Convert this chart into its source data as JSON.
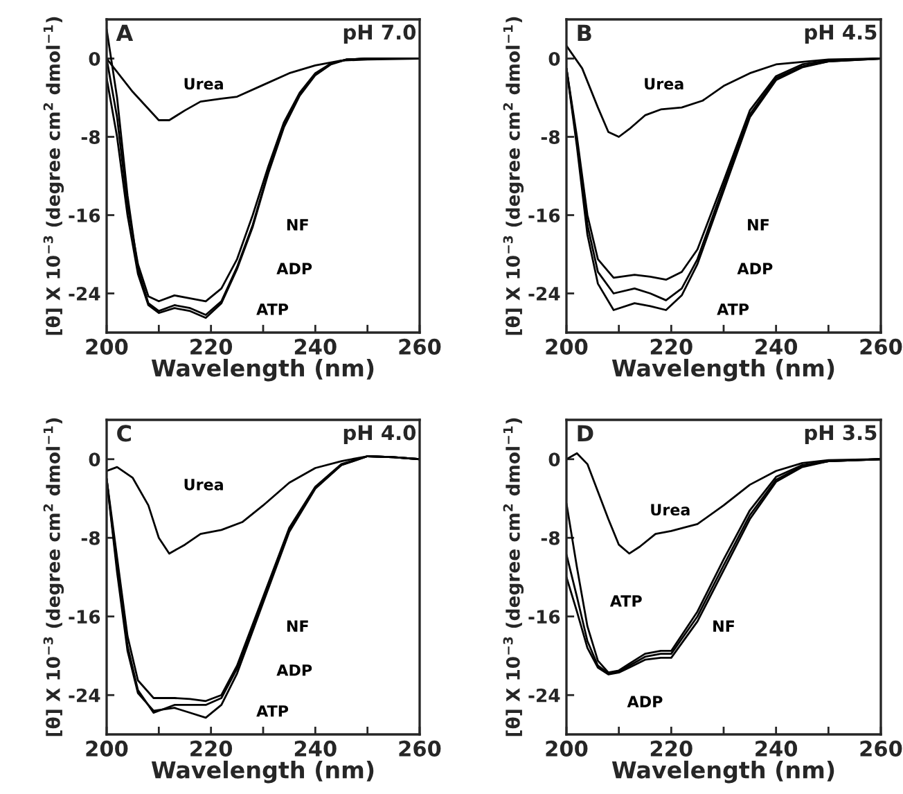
{
  "chart_data": [
    {
      "type": "line",
      "title": "pH 7.0",
      "xlabel": "Wavelength (nm)",
      "ylabel": "[θ] X 10$^{−3}$ (degree cm$^{2}$ dmol$^{−1}$)",
      "xlim": [
        200,
        260
      ],
      "ylim": [
        -28,
        4
      ],
      "xticks": [
        200,
        {
          "value": 210,
          "label": null
        },
        220,
        {
          "value": 230,
          "label": null
        },
        240,
        {
          "value": 250,
          "label": null
        },
        260
      ],
      "yticks": [
        0,
        -8,
        -16,
        -24
      ],
      "grid": false,
      "annotations": [
        "A"
      ],
      "series": [
        {
          "name": "Urea",
          "color": "#000000",
          "x": [
            200,
            205,
            210,
            212,
            215,
            218,
            222,
            225,
            230,
            235,
            240,
            245,
            250,
            260
          ],
          "values": [
            0,
            -3.4,
            -6.3,
            -6.3,
            -5.3,
            -4.4,
            -4.1,
            -3.9,
            -2.7,
            -1.5,
            -0.7,
            -0.2,
            -0.1,
            0
          ]
        },
        {
          "name": "NF",
          "color": "#000000",
          "x": [
            200,
            202,
            204,
            206,
            208,
            210,
            213,
            216,
            219,
            222,
            225,
            228,
            231,
            234,
            237,
            240,
            243,
            246,
            250,
            260
          ],
          "values": [
            0,
            -6,
            -15,
            -21,
            -24.3,
            -24.8,
            -24.2,
            -24.5,
            -24.8,
            -23.5,
            -20.5,
            -16,
            -11,
            -6.5,
            -3.5,
            -1.5,
            -0.5,
            -0.1,
            0,
            0
          ]
        },
        {
          "name": "ADP",
          "color": "#000000",
          "x": [
            200,
            202,
            204,
            206,
            208,
            210,
            213,
            216,
            219,
            222,
            225,
            228,
            231,
            234,
            237,
            240,
            243,
            246,
            250,
            260
          ],
          "values": [
            3,
            -4,
            -14,
            -21.5,
            -25,
            -25.8,
            -25.2,
            -25.5,
            -26.2,
            -24.8,
            -21.3,
            -17,
            -11.5,
            -6.8,
            -3.7,
            -1.6,
            -0.5,
            -0.1,
            0,
            0
          ]
        },
        {
          "name": "ATP",
          "color": "#000000",
          "x": [
            200,
            202,
            204,
            206,
            208,
            210,
            213,
            216,
            219,
            222,
            225,
            228,
            231,
            234,
            237,
            240,
            243,
            246,
            250,
            260
          ],
          "values": [
            -2,
            -8,
            -16,
            -22,
            -25.2,
            -26,
            -25.5,
            -25.8,
            -26.5,
            -25,
            -21.5,
            -17.2,
            -11.7,
            -7,
            -3.8,
            -1.7,
            -0.6,
            -0.1,
            0,
            0
          ]
        }
      ]
    },
    {
      "type": "line",
      "title": "pH 4.5",
      "xlabel": "Wavelength (nm)",
      "ylabel": "[θ] X 10$^{−3}$ (degree cm$^{2}$ dmol$^{−1}$)",
      "xlim": [
        200,
        260
      ],
      "ylim": [
        -28,
        4
      ],
      "xticks": [
        200,
        {
          "value": 210,
          "label": null
        },
        220,
        {
          "value": 230,
          "label": null
        },
        240,
        {
          "value": 250,
          "label": null
        },
        260
      ],
      "yticks": [
        0,
        -8,
        -16,
        -24
      ],
      "grid": false,
      "annotations": [
        "B"
      ],
      "series": [
        {
          "name": "Urea",
          "color": "#000000",
          "x": [
            200,
            203,
            206,
            208,
            210,
            212,
            215,
            218,
            222,
            226,
            230,
            235,
            240,
            250,
            260
          ],
          "values": [
            1.3,
            -1,
            -5,
            -7.5,
            -8,
            -7.2,
            -5.8,
            -5.2,
            -5,
            -4.3,
            -2.8,
            -1.5,
            -0.6,
            -0.1,
            0
          ]
        },
        {
          "name": "NF",
          "color": "#000000",
          "x": [
            200,
            202,
            204,
            206,
            209,
            213,
            216,
            219,
            222,
            225,
            230,
            235,
            240,
            245,
            250,
            260
          ],
          "values": [
            -1,
            -8,
            -16,
            -20.5,
            -22.4,
            -22.1,
            -22.3,
            -22.6,
            -21.8,
            -19.5,
            -12.5,
            -5.3,
            -1.8,
            -0.6,
            -0.2,
            0
          ]
        },
        {
          "name": "ADP",
          "color": "#000000",
          "x": [
            200,
            202,
            204,
            206,
            209,
            213,
            216,
            219,
            222,
            225,
            230,
            235,
            240,
            245,
            250,
            260
          ],
          "values": [
            -1,
            -8.5,
            -17,
            -21.8,
            -24,
            -23.5,
            -24,
            -24.7,
            -23.5,
            -20.5,
            -13,
            -5.7,
            -2,
            -0.8,
            -0.3,
            0
          ]
        },
        {
          "name": "ATP",
          "color": "#000000",
          "x": [
            200,
            202,
            204,
            206,
            209,
            213,
            216,
            219,
            222,
            225,
            230,
            235,
            240,
            245,
            250,
            260
          ],
          "values": [
            -1,
            -9,
            -18,
            -23,
            -25.7,
            -25,
            -25.3,
            -25.7,
            -24.2,
            -21,
            -13.5,
            -6,
            -2.2,
            -0.9,
            -0.3,
            0
          ]
        }
      ]
    },
    {
      "type": "line",
      "title": "pH 4.0",
      "xlabel": "Wavelength (nm)",
      "ylabel": "[θ] X 10$^{−3}$ (degree cm$^{2}$ dmol$^{−1}$)",
      "xlim": [
        200,
        260
      ],
      "ylim": [
        -28,
        4
      ],
      "xticks": [
        200,
        {
          "value": 210,
          "label": null
        },
        220,
        {
          "value": 230,
          "label": null
        },
        240,
        {
          "value": 250,
          "label": null
        },
        260
      ],
      "yticks": [
        0,
        -8,
        -16,
        -24
      ],
      "grid": false,
      "annotations": [
        "C"
      ],
      "series": [
        {
          "name": "Urea",
          "color": "#000000",
          "x": [
            200,
            202,
            205,
            208,
            210,
            212,
            215,
            218,
            222,
            226,
            230,
            235,
            240,
            245,
            250,
            255,
            260
          ],
          "values": [
            -1.2,
            -0.8,
            -1.9,
            -4.7,
            -8,
            -9.6,
            -8.7,
            -7.6,
            -7.2,
            -6.4,
            -4.7,
            -2.4,
            -0.9,
            -0.2,
            0.3,
            0.2,
            0
          ]
        },
        {
          "name": "NF",
          "color": "#000000",
          "x": [
            200,
            202,
            204,
            206,
            209,
            213,
            216,
            219,
            222,
            225,
            230,
            235,
            240,
            245,
            250,
            255,
            260
          ],
          "values": [
            -2,
            -10,
            -18,
            -22.5,
            -24.3,
            -24.3,
            -24.4,
            -24.6,
            -24,
            -21,
            -14,
            -7,
            -2.8,
            -0.5,
            0.3,
            0.2,
            0
          ]
        },
        {
          "name": "ADP",
          "color": "#000000",
          "x": [
            200,
            202,
            204,
            206,
            209,
            213,
            216,
            219,
            222,
            225,
            230,
            235,
            240,
            245,
            250,
            255,
            260
          ],
          "values": [
            -2,
            -11,
            -19,
            -23.5,
            -25.8,
            -25,
            -25,
            -25,
            -24.3,
            -21.3,
            -14.3,
            -7.2,
            -2.9,
            -0.6,
            0.3,
            0.2,
            0
          ]
        },
        {
          "name": "ATP",
          "color": "#000000",
          "x": [
            200,
            202,
            204,
            206,
            209,
            213,
            216,
            219,
            222,
            225,
            230,
            235,
            240,
            245,
            250,
            255,
            260
          ],
          "values": [
            -2,
            -11.5,
            -19.5,
            -23.8,
            -25.6,
            -25.3,
            -25.8,
            -26.3,
            -25,
            -21.8,
            -14.6,
            -7.4,
            -3,
            -0.6,
            0.3,
            0.2,
            0
          ]
        }
      ]
    },
    {
      "type": "line",
      "title": "pH 3.5",
      "xlabel": "Wavelength (nm)",
      "ylabel": "[θ] X 10$^{−3}$ (degree cm$^{2}$ dmol$^{−1}$)",
      "xlim": [
        200,
        260
      ],
      "ylim": [
        -28,
        4
      ],
      "xticks": [
        200,
        {
          "value": 210,
          "label": null
        },
        220,
        {
          "value": 230,
          "label": null
        },
        240,
        {
          "value": 250,
          "label": null
        },
        260
      ],
      "yticks": [
        0,
        -8,
        -16,
        -24
      ],
      "grid": false,
      "annotations": [
        "D"
      ],
      "series": [
        {
          "name": "Urea",
          "color": "#000000",
          "x": [
            200,
            202,
            204,
            206,
            208,
            210,
            212,
            214,
            217,
            220,
            225,
            230,
            235,
            240,
            245,
            250,
            260
          ],
          "values": [
            0,
            0.6,
            -0.5,
            -3.3,
            -6.1,
            -8.7,
            -9.6,
            -8.9,
            -7.6,
            -7.3,
            -6.6,
            -4.7,
            -2.6,
            -1.2,
            -0.4,
            -0.1,
            0
          ]
        },
        {
          "name": "ATP",
          "color": "#000000",
          "x": [
            200,
            202,
            204,
            206,
            208,
            210,
            212,
            215,
            218,
            220,
            225,
            230,
            235,
            240,
            245,
            250,
            260
          ],
          "values": [
            -4.5,
            -11,
            -17,
            -20.5,
            -21.7,
            -21.5,
            -20.8,
            -19.8,
            -19.5,
            -19.5,
            -15.5,
            -10.2,
            -5.2,
            -1.8,
            -0.6,
            -0.2,
            0
          ]
        },
        {
          "name": "ADP",
          "color": "#000000",
          "x": [
            200,
            202,
            204,
            206,
            208,
            210,
            212,
            215,
            218,
            220,
            225,
            230,
            235,
            240,
            245,
            250,
            260
          ],
          "values": [
            -9.7,
            -14,
            -18.5,
            -21,
            -21.8,
            -21.6,
            -21,
            -20.1,
            -19.8,
            -19.8,
            -16,
            -10.8,
            -5.7,
            -2.1,
            -0.7,
            -0.2,
            0
          ]
        },
        {
          "name": "NF",
          "color": "#000000",
          "x": [
            200,
            202,
            204,
            206,
            208,
            210,
            212,
            215,
            218,
            220,
            225,
            230,
            235,
            240,
            245,
            250,
            260
          ],
          "values": [
            -12,
            -15.5,
            -19.2,
            -21.2,
            -21.9,
            -21.7,
            -21.2,
            -20.4,
            -20.2,
            -20.2,
            -16.5,
            -11.3,
            -6.1,
            -2.3,
            -0.8,
            -0.2,
            0
          ]
        }
      ]
    }
  ]
}
